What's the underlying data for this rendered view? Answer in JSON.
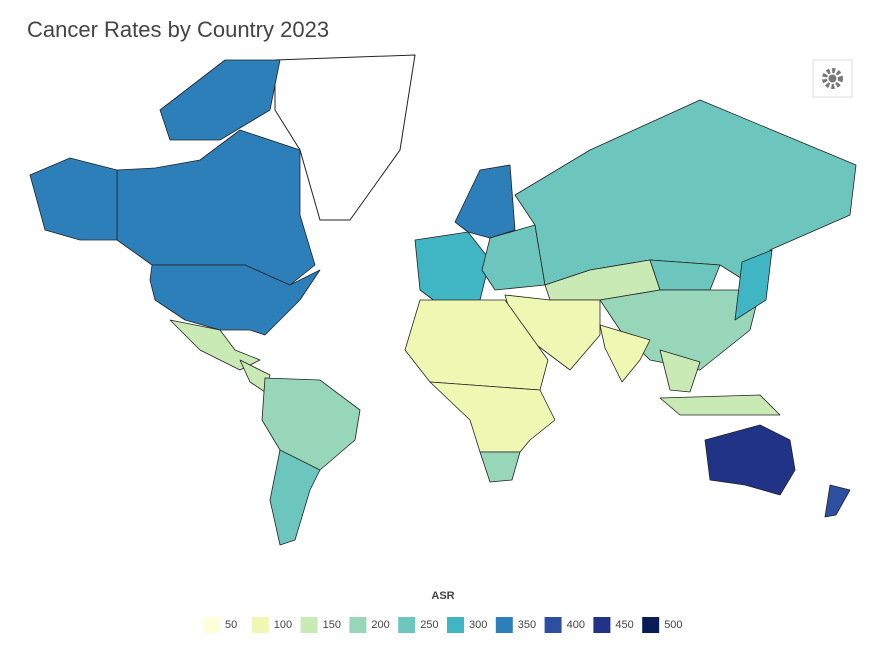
{
  "chart_data": {
    "type": "choropleth",
    "title": "Cancer Rates by Country 2023",
    "legend_title": "ASR",
    "legend_values": [
      50,
      100,
      150,
      200,
      250,
      300,
      350,
      400,
      450,
      500
    ],
    "colors": [
      "#ffffd9",
      "#eef8b3",
      "#c9e9b5",
      "#97d6b9",
      "#6cc6be",
      "#40b5c4",
      "#2c7fb8",
      "#2c4fa1",
      "#213386",
      "#081d58"
    ],
    "values": [
      340,
      360,
      340,
      150,
      130,
      210,
      230,
      320,
      330,
      260,
      250,
      170,
      230,
      200,
      120,
      100,
      120,
      120,
      220,
      160,
      160,
      300,
      460,
      420
    ]
  }
}
